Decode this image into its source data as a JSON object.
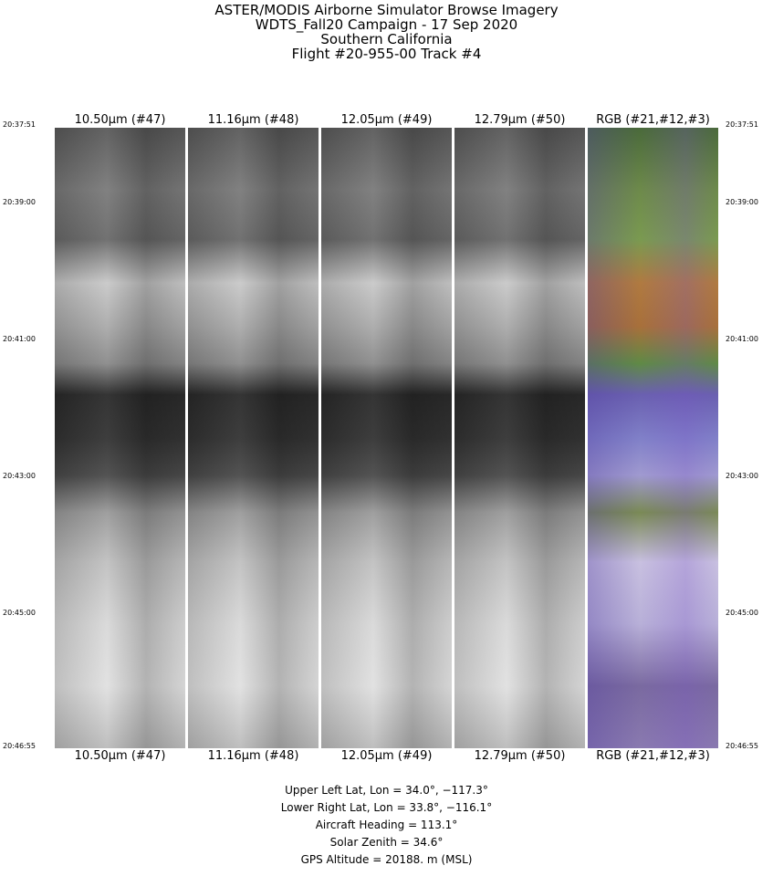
{
  "title": {
    "lines": [
      "ASTER/MODIS Airborne Simulator Browse Imagery",
      "WDTS_Fall20 Campaign - 17 Sep 2020",
      "Southern California",
      "Flight #20-955-00 Track #4"
    ]
  },
  "channels": [
    {
      "label": "10.50μm (#47)",
      "type": "grayscale"
    },
    {
      "label": "11.16μm (#48)",
      "type": "grayscale"
    },
    {
      "label": "12.05μm (#49)",
      "type": "grayscale"
    },
    {
      "label": "12.79μm (#50)",
      "type": "grayscale"
    },
    {
      "label": "RGB (#21,#12,#3)",
      "type": "color composite"
    }
  ],
  "time_ticks": [
    "20:37:51",
    "20:39:00",
    "20:41:00",
    "20:43:00",
    "20:45:00",
    "20:46:55"
  ],
  "info": {
    "upper_left": "Upper Left Lat, Lon =   34.0°, −117.3°",
    "lower_right": "Lower Right Lat, Lon =   33.8°, −116.1°",
    "heading": "Aircraft Heading =  113.1°",
    "solar_zenith": "Solar Zenith =   34.6°",
    "gps_altitude": "GPS Altitude =  20188. m (MSL)"
  }
}
